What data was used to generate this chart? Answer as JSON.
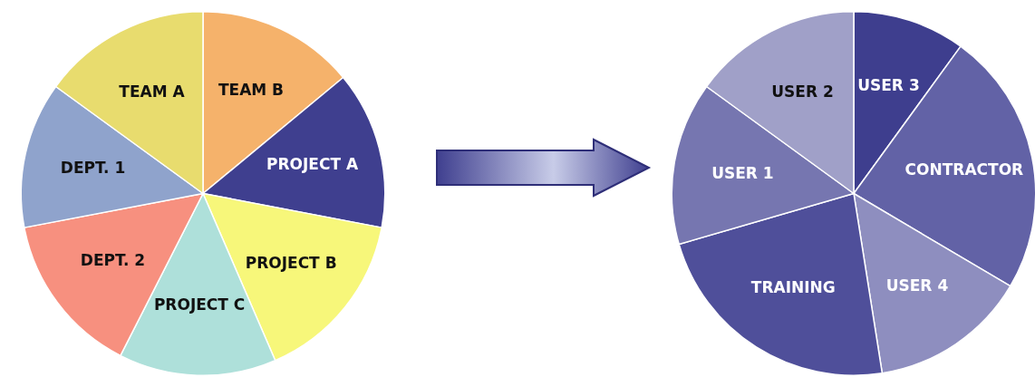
{
  "chart_data": [
    {
      "type": "pie",
      "categories": [
        "TEAM B",
        "PROJECT A",
        "PROJECT B",
        "PROJECT C",
        "DEPT. 2",
        "DEPT. 1",
        "TEAM A"
      ],
      "values": [
        14,
        14,
        15.5,
        14,
        14.5,
        13,
        15
      ],
      "colors": [
        "#f5b26b",
        "#3f3f8f",
        "#f7f77a",
        "#aee0da",
        "#f7907f",
        "#8fa3cc",
        "#e8dc6e"
      ],
      "legend": false
    },
    {
      "type": "pie",
      "categories": [
        "USER 3",
        "CONTRACTOR",
        "USER 4",
        "TRAINING",
        "USER 1",
        "USER 2"
      ],
      "values": [
        10,
        23.5,
        14,
        23,
        14.5,
        15
      ],
      "colors": [
        "#3e3e8e",
        "#6262a6",
        "#8e8ebf",
        "#4f4f9a",
        "#7676b0",
        "#a0a0c8"
      ],
      "legend": false
    }
  ]
}
